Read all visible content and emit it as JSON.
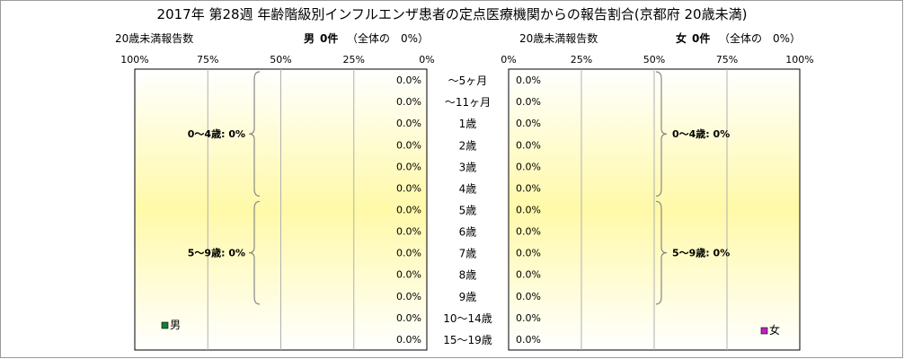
{
  "chart_data": {
    "type": "bar",
    "orientation": "horizontal",
    "layout": "population-pyramid",
    "title": "2017年 第28週 年齢階級別インフルエンザ患者の定点医療機関からの報告割合(京都府 20歳未満)",
    "categories": [
      "～5ヶ月",
      "～11ヶ月",
      "1歳",
      "2歳",
      "3歳",
      "4歳",
      "5歳",
      "6歳",
      "7歳",
      "8歳",
      "9歳",
      "10～14歳",
      "15～19歳"
    ],
    "male": {
      "count_label": "20歳未満報告数",
      "header_name": "男",
      "header_count": "0件",
      "header_share": "（全体の　0%）",
      "legend": "男",
      "axis_ticks": [
        "100%",
        "75%",
        "50%",
        "25%",
        "0%"
      ],
      "values": [
        0,
        0,
        0,
        0,
        0,
        0,
        0,
        0,
        0,
        0,
        0,
        0,
        0
      ],
      "value_labels": [
        "0.0%",
        "0.0%",
        "0.0%",
        "0.0%",
        "0.0%",
        "0.0%",
        "0.0%",
        "0.0%",
        "0.0%",
        "0.0%",
        "0.0%",
        "0.0%",
        "0.0%"
      ],
      "bracket_labels": [
        "0～4歳: 0%",
        "5～9歳: 0%"
      ]
    },
    "female": {
      "count_label": "20歳未満報告数",
      "header_name": "女",
      "header_count": "0件",
      "header_share": "（全体の　0%）",
      "legend": "女",
      "axis_ticks": [
        "0%",
        "25%",
        "50%",
        "75%",
        "100%"
      ],
      "values": [
        0,
        0,
        0,
        0,
        0,
        0,
        0,
        0,
        0,
        0,
        0,
        0,
        0
      ],
      "value_labels": [
        "0.0%",
        "0.0%",
        "0.0%",
        "0.0%",
        "0.0%",
        "0.0%",
        "0.0%",
        "0.0%",
        "0.0%",
        "0.0%",
        "0.0%",
        "0.0%",
        "0.0%"
      ],
      "bracket_labels": [
        "0～4歳: 0%",
        "5～9歳: 0%"
      ]
    },
    "xlim": [
      0,
      100
    ],
    "unit": "%",
    "grid": true,
    "colors": {
      "male_legend": "#1a7a3a",
      "female_legend": "#c020c0",
      "plot_glow": "#fff9a8",
      "plot_edge": "#ffffff",
      "grid": "#b0b0b0",
      "bracket": "#888888"
    }
  }
}
